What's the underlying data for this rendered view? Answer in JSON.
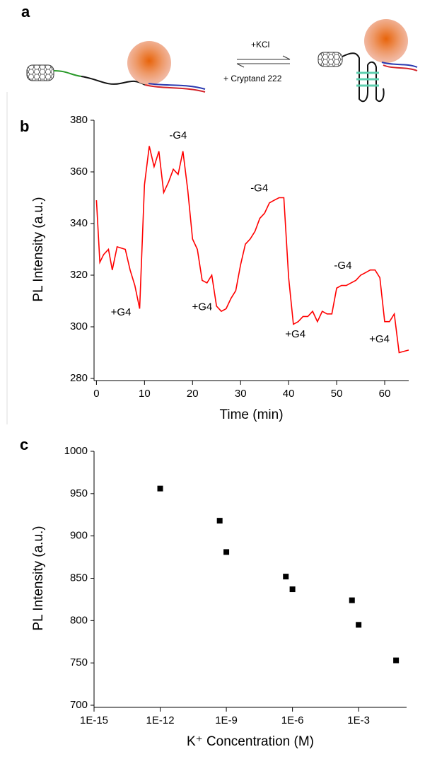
{
  "schematic": {
    "label": "a",
    "forward": "+KCl",
    "reverse": "+ Cryptand 222"
  },
  "chart_data": [
    {
      "type": "line",
      "panel_label": "b",
      "xlabel": "Time (min)",
      "ylabel": "PL Intensity (a.u.)",
      "color": "#ff0000",
      "x": [
        0,
        0.7,
        1.5,
        2.5,
        3.3,
        4.3,
        6,
        7,
        8,
        9,
        10,
        11,
        12,
        13,
        14,
        15,
        16,
        17,
        18,
        19,
        20,
        21,
        22,
        23,
        24,
        25,
        26,
        27,
        28,
        29,
        30,
        31,
        32,
        33,
        34,
        35,
        36,
        37,
        38,
        39,
        40,
        41,
        42,
        43,
        44,
        45,
        46,
        47,
        48,
        49,
        50,
        51,
        52,
        53,
        54,
        55,
        56,
        57,
        58,
        59,
        60,
        61,
        62,
        63,
        65
      ],
      "values": [
        349,
        325,
        328,
        330,
        322,
        331,
        330,
        322,
        316,
        307,
        355,
        370,
        362,
        368,
        352,
        356,
        361,
        359,
        368,
        353,
        334,
        330,
        318,
        317,
        320,
        308,
        306,
        307,
        311,
        314,
        324,
        332,
        334,
        337,
        342,
        344,
        348,
        349,
        350,
        350,
        319,
        301,
        302,
        304,
        304,
        306,
        302,
        306,
        305,
        305,
        315,
        316,
        316,
        317,
        318,
        320,
        321,
        322,
        322,
        319,
        302,
        302,
        305,
        290,
        291
      ],
      "xlim": [
        -0.5,
        65
      ],
      "ylim": [
        280,
        380
      ],
      "xticks": [
        0,
        10,
        20,
        30,
        40,
        50,
        60
      ],
      "yticks": [
        280,
        300,
        320,
        340,
        360,
        380
      ],
      "annotations": [
        {
          "text": "+G4",
          "x": 5.1,
          "y": 305.5
        },
        {
          "text": "-G4",
          "x": 17,
          "y": 374
        },
        {
          "text": "+G4",
          "x": 22,
          "y": 307.5
        },
        {
          "text": "-G4",
          "x": 33.9,
          "y": 353.5
        },
        {
          "text": "+G4",
          "x": 41.4,
          "y": 297
        },
        {
          "text": "-G4",
          "x": 51.3,
          "y": 323.5
        },
        {
          "text": "+G4",
          "x": 58.9,
          "y": 295
        }
      ]
    },
    {
      "type": "scatter",
      "panel_label": "c",
      "xlabel": "K⁺ Concentration (M)",
      "ylabel": "PL Intensity (a.u.)",
      "color": "#000000",
      "xscale": "log",
      "x": [
        1e-12,
        5e-10,
        1e-09,
        5e-07,
        1e-06,
        0.0005,
        0.001,
        0.05
      ],
      "values": [
        956,
        918,
        881,
        852,
        837,
        824,
        795,
        753
      ],
      "xlim": [
        1e-15,
        0.15
      ],
      "ylim": [
        700,
        1000
      ],
      "xticks": [
        {
          "value": 1e-15,
          "label": "1E-15"
        },
        {
          "value": 1e-12,
          "label": "1E-12"
        },
        {
          "value": 1e-09,
          "label": "1E-9"
        },
        {
          "value": 1e-06,
          "label": "1E-6"
        },
        {
          "value": 0.001,
          "label": "1E-3"
        }
      ],
      "yticks": [
        700,
        750,
        800,
        850,
        900,
        950,
        1000
      ]
    }
  ]
}
